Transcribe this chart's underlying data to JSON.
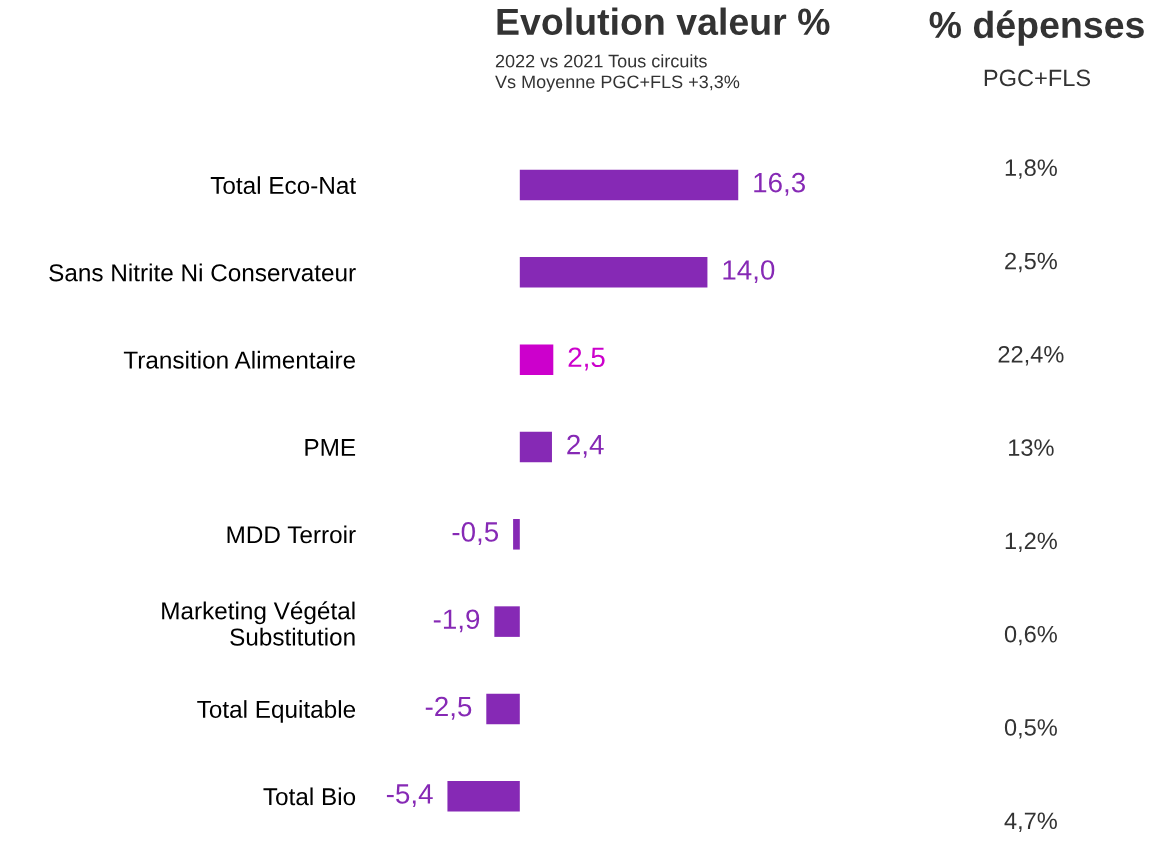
{
  "chart_data": {
    "type": "bar",
    "orientation": "horizontal",
    "title": "Evolution valeur %",
    "subtitle": "2022 vs 2021 Tous circuits\nVs Moyenne PGC+FLS +3,3%",
    "categories": [
      "Total Eco-Nat",
      "Sans Nitrite Ni Conservateur",
      "Transition Alimentaire",
      "PME",
      "MDD Terroir",
      "Marketing Végétal\nSubstitution",
      "Total Equitable",
      "Total Bio"
    ],
    "values": [
      16.3,
      14.0,
      2.5,
      2.4,
      -0.5,
      -1.9,
      -2.5,
      -5.4
    ],
    "value_labels": [
      "16,3",
      "14,0",
      "2,5",
      "2,4",
      "-0,5",
      "-1,9",
      "-2,5",
      "-5,4"
    ],
    "colors": [
      "#8629b5",
      "#8629b5",
      "#cc00cc",
      "#8629b5",
      "#8629b5",
      "#8629b5",
      "#8629b5",
      "#8629b5"
    ],
    "annotations": [
      "% dépenses",
      "PGC+FLS",
      "1,8%",
      "2,5%",
      "22,4%",
      "13%",
      "1,2%",
      "0,6%",
      "0,5%",
      "4,7%"
    ],
    "grid": false
  }
}
